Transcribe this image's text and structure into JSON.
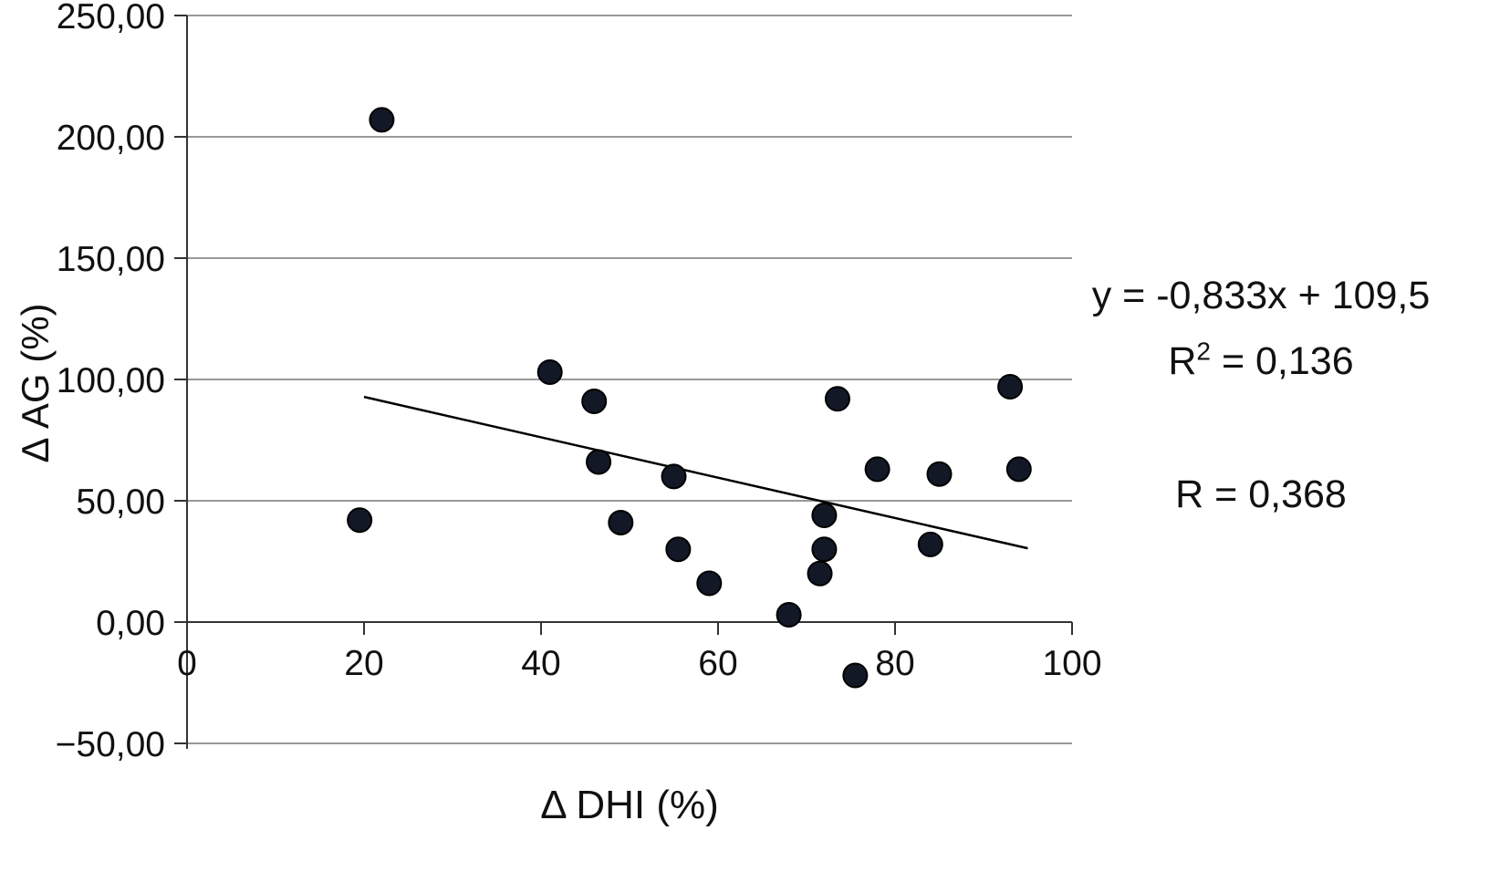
{
  "chart_data": {
    "type": "scatter",
    "title": "",
    "xlabel": "Δ DHI (%)",
    "ylabel": "Δ AG (%)",
    "xlim": [
      0,
      100
    ],
    "ylim": [
      -50,
      250
    ],
    "grid": "horizontal",
    "legend": "none",
    "point_color": "#121826",
    "point_stroke": "#000000",
    "gridline_color": "#999999",
    "axis_color": "#333333",
    "x_ticks": [
      {
        "value": 0,
        "label": "0"
      },
      {
        "value": 20,
        "label": "20"
      },
      {
        "value": 40,
        "label": "40"
      },
      {
        "value": 60,
        "label": "60"
      },
      {
        "value": 80,
        "label": "80"
      },
      {
        "value": 100,
        "label": "100"
      }
    ],
    "y_ticks": [
      {
        "value": 250,
        "label": "250,00"
      },
      {
        "value": 200,
        "label": "200,00"
      },
      {
        "value": 150,
        "label": "150,00"
      },
      {
        "value": 100,
        "label": "100,00"
      },
      {
        "value": 50,
        "label": "50,00"
      },
      {
        "value": 0,
        "label": "0,00"
      },
      {
        "value": -50,
        "label": "−50,00"
      }
    ],
    "points": [
      [
        19.5,
        42
      ],
      [
        22,
        207
      ],
      [
        41,
        103
      ],
      [
        46,
        91
      ],
      [
        46.5,
        66
      ],
      [
        49,
        41
      ],
      [
        55,
        60
      ],
      [
        55.5,
        30
      ],
      [
        59,
        16
      ],
      [
        68,
        3
      ],
      [
        71.5,
        20
      ],
      [
        72,
        30
      ],
      [
        72,
        44
      ],
      [
        73.5,
        92
      ],
      [
        75.5,
        -22
      ],
      [
        78,
        63
      ],
      [
        84,
        32
      ],
      [
        85,
        61
      ],
      [
        93,
        97
      ],
      [
        94,
        63
      ]
    ],
    "trendline": {
      "slope": -0.833,
      "intercept": 109.5,
      "x1": 20,
      "y1": 92.8,
      "x2": 95,
      "y2": 30.4
    },
    "annotations": {
      "equation": "y = -0,833x + 109,5",
      "r_squared": {
        "prefix": "R",
        "sup": "2",
        "rest": " = 0,136"
      },
      "r": "R = 0,368"
    }
  }
}
